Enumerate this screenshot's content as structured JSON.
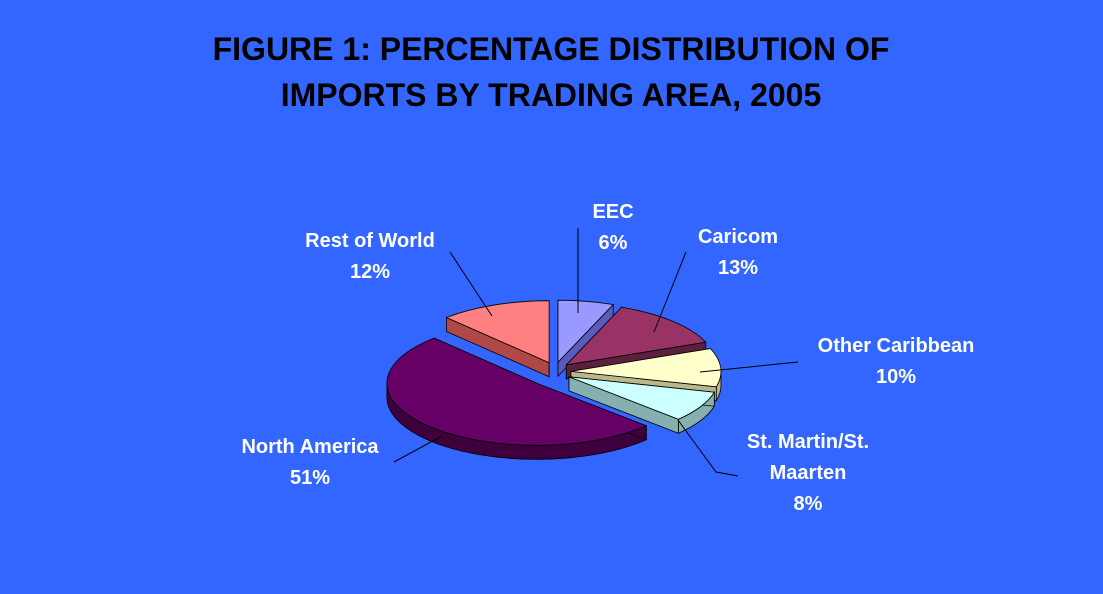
{
  "chart_data": {
    "type": "pie",
    "title": [
      "FIGURE 1: PERCENTAGE DISTRIBUTION OF",
      "IMPORTS BY TRADING AREA, 2005"
    ],
    "slices": [
      {
        "name": [
          "EEC"
        ],
        "value": 6,
        "value_label": "6%",
        "color": "#9999FF",
        "side_color": "#5A5ABF"
      },
      {
        "name": [
          "Caricom"
        ],
        "value": 13,
        "value_label": "13%",
        "color": "#993366",
        "side_color": "#5C1F3D"
      },
      {
        "name": [
          "Other Caribbean"
        ],
        "value": 10,
        "value_label": "10%",
        "color": "#FFFFCC",
        "side_color": "#B8B88A"
      },
      {
        "name": [
          "St. Martin/St.",
          "Maarten"
        ],
        "value": 8,
        "value_label": "8%",
        "color": "#CCFFFF",
        "side_color": "#86AFAF"
      },
      {
        "name": [
          "North America"
        ],
        "value": 51,
        "value_label": "51%",
        "color": "#660066",
        "side_color": "#3D003D"
      },
      {
        "name": [
          "Rest of World"
        ],
        "value": 12,
        "value_label": "12%",
        "color": "#FF8080",
        "side_color": "#B04848"
      }
    ],
    "legend": "none",
    "style": "exploded-3d"
  }
}
